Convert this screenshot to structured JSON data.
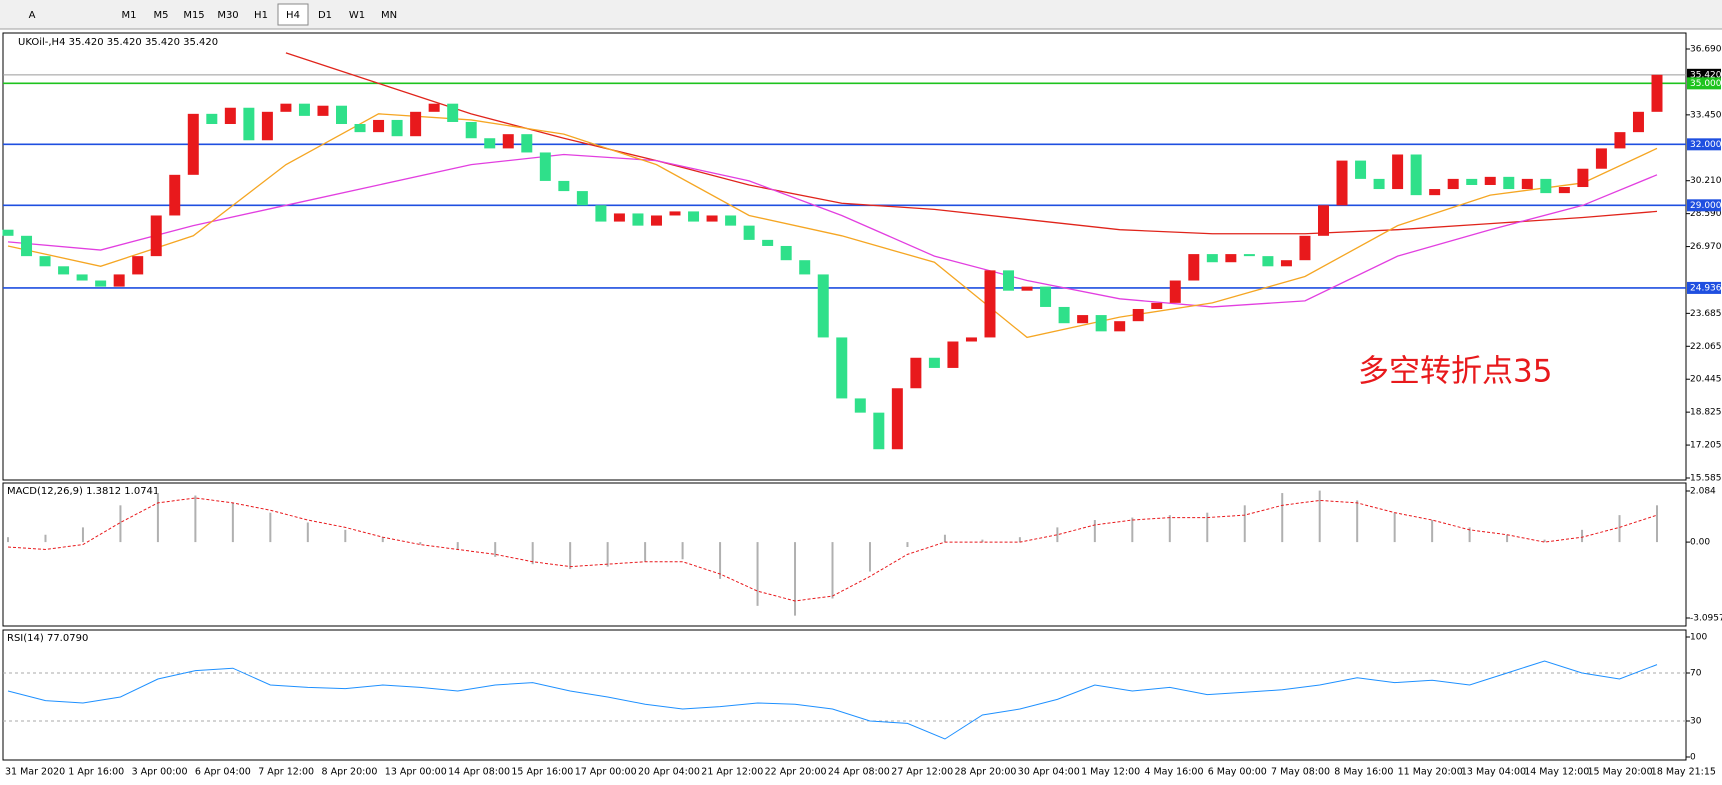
{
  "toolbar": {
    "buttons": [
      "A",
      "M1",
      "M5",
      "M15",
      "M30",
      "H1",
      "H4",
      "D1",
      "W1",
      "MN"
    ],
    "active": "H4"
  },
  "chart_data": {
    "type": "candlestick",
    "title": "UKOil-,H4  35.420 35.420 35.420 35.420",
    "annotation": "多空转折点35",
    "first_open": 27.8,
    "closes": [
      27.5,
      26.5,
      26.0,
      25.6,
      25.3,
      25.0,
      25.6,
      26.5,
      28.5,
      30.5,
      33.5,
      33.0,
      33.8,
      32.2,
      33.6,
      34.0,
      33.4,
      33.9,
      33.0,
      32.6,
      33.2,
      32.4,
      33.6,
      34.0,
      33.1,
      32.3,
      31.8,
      32.5,
      31.6,
      30.2,
      29.7,
      29.0,
      28.2,
      28.6,
      28.0,
      28.5,
      28.7,
      28.2,
      28.5,
      28.0,
      27.3,
      27.0,
      26.3,
      25.6,
      22.5,
      19.5,
      18.8,
      17.0,
      20.0,
      21.5,
      21.0,
      22.3,
      22.5,
      25.8,
      24.8,
      25.0,
      24.0,
      23.2,
      23.6,
      22.8,
      23.3,
      23.9,
      24.2,
      25.3,
      26.6,
      26.2,
      26.6,
      26.5,
      26.0,
      26.3,
      27.5,
      29.0,
      31.2,
      30.3,
      29.8,
      31.5,
      29.5,
      29.8,
      30.3,
      30.0,
      30.4,
      29.8,
      30.3,
      29.6,
      29.9,
      30.8,
      31.8,
      32.6,
      33.6,
      35.42
    ],
    "up_color": "#e8191c",
    "down_color": "#2fe08a",
    "ma_x": [
      0,
      5,
      10,
      15,
      20,
      25,
      30,
      35,
      40,
      45,
      50,
      55,
      60,
      65,
      70,
      75,
      80,
      85,
      89
    ],
    "moving_averages": [
      {
        "color": "#e0241b",
        "values": [
          null,
          null,
          null,
          36.5,
          35.0,
          33.5,
          32.3,
          31.2,
          30.0,
          29.1,
          28.8,
          28.3,
          27.8,
          27.6,
          27.6,
          27.8,
          28.1,
          28.4,
          28.7
        ]
      },
      {
        "color": "#e23fe0",
        "values": [
          27.2,
          26.8,
          28.0,
          29.0,
          30.0,
          31.0,
          31.5,
          31.2,
          30.2,
          28.5,
          26.5,
          25.3,
          24.4,
          24.0,
          24.3,
          26.5,
          27.8,
          29.0,
          30.5
        ]
      },
      {
        "color": "#f5a623",
        "values": [
          27.0,
          26.0,
          27.5,
          31.0,
          33.5,
          33.2,
          32.5,
          31.0,
          28.5,
          27.5,
          26.2,
          22.5,
          23.5,
          24.2,
          25.5,
          28.0,
          29.5,
          30.1,
          31.8
        ]
      }
    ],
    "levels": [
      {
        "value": 35.42,
        "label": "35.420",
        "color": "#9a9a9a"
      },
      {
        "value": 35.0,
        "label": "35.000",
        "color": "#1ec31e"
      },
      {
        "value": 32.0,
        "label": "32.000",
        "color": "#1f4fe0"
      },
      {
        "value": 29.0,
        "label": "29.000",
        "color": "#1f4fe0"
      },
      {
        "value": 24.936,
        "label": "24.936",
        "color": "#1f4fe0"
      }
    ],
    "ylim": [
      15.585,
      36.69
    ],
    "yticks": [
      {
        "value": 36.69,
        "label": "36.690"
      },
      {
        "value": 33.45,
        "label": "33.450"
      },
      {
        "value": 30.21,
        "label": "30.210"
      },
      {
        "value": 28.59,
        "label": "28.590"
      },
      {
        "value": 26.97,
        "label": "26.970"
      },
      {
        "value": 23.685,
        "label": "23.685"
      },
      {
        "value": 22.065,
        "label": "22.065"
      },
      {
        "value": 20.445,
        "label": "20.445"
      },
      {
        "value": 18.825,
        "label": "18.825"
      },
      {
        "value": 17.205,
        "label": "17.205"
      },
      {
        "value": 15.585,
        "label": "15.585"
      }
    ],
    "x": [
      "31 Mar 2020",
      "1 Apr 16:00",
      "3 Apr 00:00",
      "6 Apr 04:00",
      "7 Apr 12:00",
      "8 Apr 20:00",
      "13 Apr 00:00",
      "14 Apr 08:00",
      "15 Apr 16:00",
      "17 Apr 00:00",
      "20 Apr 04:00",
      "21 Apr 12:00",
      "22 Apr 20:00",
      "24 Apr 08:00",
      "27 Apr 12:00",
      "28 Apr 20:00",
      "30 Apr 04:00",
      "1 May 12:00",
      "4 May 16:00",
      "6 May 00:00",
      "7 May 08:00",
      "8 May 16:00",
      "11 May 20:00",
      "13 May 04:00",
      "14 May 12:00",
      "15 May 20:00",
      "18 May 21:15"
    ],
    "macd": {
      "title": "MACD(12,26,9) 1.3812 1.0741",
      "ylim": [
        -3.0957,
        2.084
      ],
      "yticks": [
        2.084,
        {
          "value": 0,
          "label": "0.00"
        },
        -3.0957
      ],
      "histogram": [
        0.2,
        0.3,
        0.6,
        1.5,
        2.0,
        1.9,
        1.6,
        1.2,
        0.8,
        0.5,
        0.2,
        -0.1,
        -0.3,
        -0.6,
        -0.9,
        -1.1,
        -1.0,
        -0.8,
        -0.7,
        -1.5,
        -2.6,
        -3.0,
        -2.3,
        -1.2,
        -0.2,
        0.3,
        0.1,
        0.2,
        0.6,
        0.9,
        1.0,
        1.1,
        1.2,
        1.5,
        2.0,
        2.1,
        1.7,
        1.2,
        0.9,
        0.6,
        0.3,
        0.1,
        0.5,
        1.1,
        1.5
      ],
      "signal": [
        -0.2,
        -0.3,
        -0.1,
        0.8,
        1.6,
        1.8,
        1.6,
        1.3,
        0.9,
        0.6,
        0.2,
        -0.1,
        -0.3,
        -0.5,
        -0.8,
        -1.0,
        -0.9,
        -0.8,
        -0.8,
        -1.3,
        -2.0,
        -2.4,
        -2.2,
        -1.4,
        -0.5,
        0.0,
        0.0,
        0.0,
        0.3,
        0.7,
        0.9,
        1.0,
        1.0,
        1.1,
        1.5,
        1.7,
        1.6,
        1.2,
        0.9,
        0.5,
        0.3,
        0.0,
        0.2,
        0.6,
        1.1
      ]
    },
    "rsi": {
      "title": "RSI(14) 77.0790",
      "ylim": [
        0,
        100
      ],
      "yticks": [
        100,
        70,
        30,
        0
      ],
      "levels": [
        70,
        30
      ],
      "values": [
        55,
        47,
        45,
        50,
        65,
        72,
        74,
        60,
        58,
        57,
        60,
        58,
        55,
        60,
        62,
        55,
        50,
        44,
        40,
        42,
        45,
        44,
        40,
        30,
        28,
        15,
        35,
        40,
        48,
        60,
        55,
        58,
        52,
        54,
        56,
        60,
        66,
        62,
        64,
        60,
        70,
        80,
        70,
        65,
        77
      ]
    }
  }
}
